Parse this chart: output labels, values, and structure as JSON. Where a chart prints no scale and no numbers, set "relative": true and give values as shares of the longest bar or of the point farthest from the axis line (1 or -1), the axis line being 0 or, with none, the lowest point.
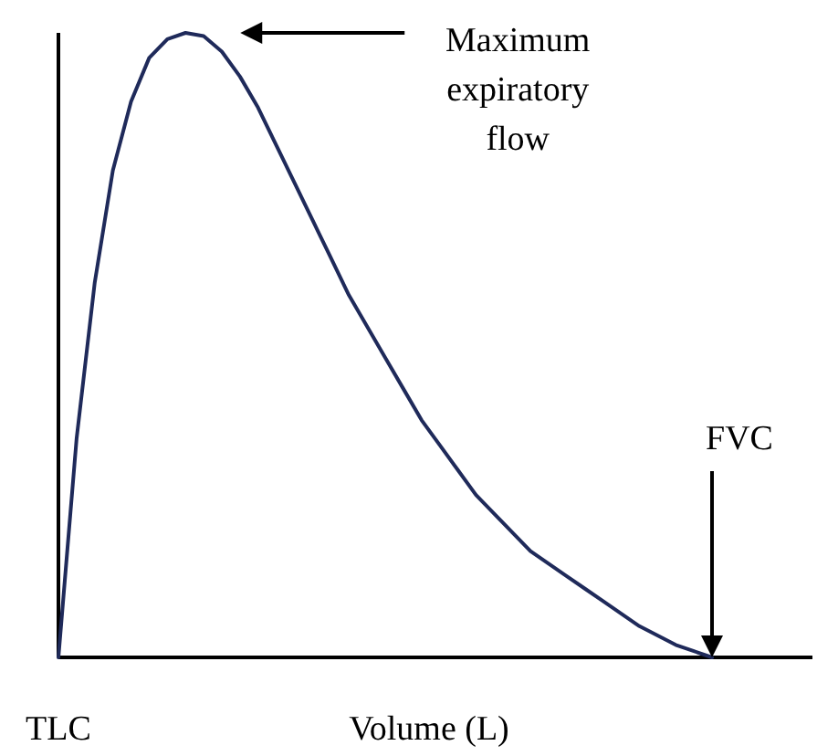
{
  "chart_data": {
    "type": "line",
    "relative": true,
    "xlabel": "Volume (L)",
    "categories": [
      null,
      null,
      null,
      null,
      null,
      null,
      null,
      null,
      null,
      null,
      null,
      null,
      null,
      null,
      null,
      null,
      null,
      null,
      null,
      null,
      null,
      null,
      null,
      null,
      null,
      null,
      null,
      null,
      null,
      null,
      null,
      null,
      null,
      null,
      null,
      null,
      null
    ],
    "series": [
      {
        "color": "#1f2a5a",
        "values": [
          0,
          0.35,
          0.6,
          0.78,
          0.89,
          0.96,
          0.99,
          1,
          0.995,
          0.97,
          0.93,
          0.88,
          0.82,
          0.76,
          0.7,
          0.64,
          0.58,
          0.53,
          0.48,
          0.43,
          0.38,
          0.34,
          0.3,
          0.26,
          0.23,
          0.2,
          0.17,
          0.15,
          0.13,
          0.11,
          0.09,
          0.07,
          0.05,
          0.035,
          0.02,
          0.01,
          0
        ]
      }
    ],
    "annotations": [
      "TLC",
      "Maximum expiratory flow",
      "FVC"
    ]
  }
}
